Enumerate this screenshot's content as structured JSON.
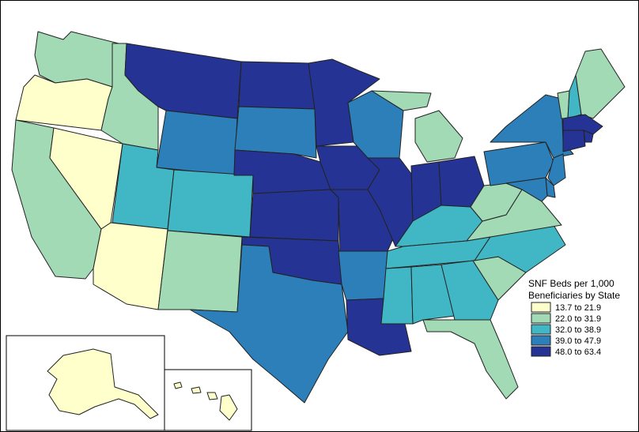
{
  "legend": {
    "title_line1": "SNF Beds per 1,000",
    "title_line2": "Beneficiaries by State",
    "classes": [
      {
        "label": "13.7 to 21.9",
        "color": "#FFFFCC"
      },
      {
        "label": "22.0 to 31.9",
        "color": "#A1DAB4"
      },
      {
        "label": "32.0 to 38.9",
        "color": "#41B6C4"
      },
      {
        "label": "39.0 to 47.9",
        "color": "#2C7FB8"
      },
      {
        "label": "48.0 to 63.4",
        "color": "#253494"
      }
    ]
  },
  "states": {
    "WA": 1,
    "OR": 0,
    "CA": 1,
    "NV": 0,
    "ID": 1,
    "MT": 4,
    "WY": 3,
    "UT": 2,
    "AZ": 0,
    "CO": 2,
    "NM": 1,
    "ND": 4,
    "SD": 3,
    "NE": 4,
    "KS": 4,
    "OK": 4,
    "TX": 3,
    "MN": 4,
    "IA": 4,
    "MO": 4,
    "AR": 3,
    "LA": 4,
    "WI": 3,
    "IL": 4,
    "MI": 1,
    "IN": 4,
    "OH": 4,
    "KY": 2,
    "TN": 2,
    "MS": 2,
    "AL": 2,
    "GA": 2,
    "FL": 1,
    "SC": 1,
    "NC": 2,
    "VA": 1,
    "WV": 1,
    "PA": 3,
    "NY": 3,
    "VT": 1,
    "NH": 2,
    "ME": 1,
    "MA": 4,
    "RI": 4,
    "CT": 4,
    "NJ": 3,
    "DE": 3,
    "MD": 3,
    "AK": 0,
    "HI": 0
  }
}
